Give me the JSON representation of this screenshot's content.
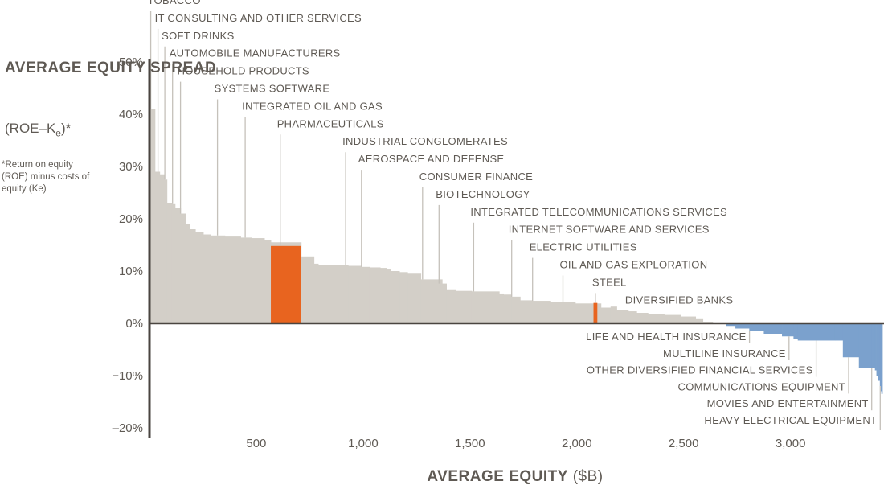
{
  "chart_data": {
    "type": "area",
    "title": "",
    "ylabel": {
      "title": "AVERAGE EQUITY SPREAD",
      "formula": "(ROE–K",
      "formula_sub": "e",
      "formula_end": ")*",
      "footnote": "*Return on equity (ROE) minus costs of equity (Ke)"
    },
    "xlabel": {
      "bold": "AVERAGE EQUITY",
      "unit": "($B)"
    },
    "xlim": [
      0,
      3430
    ],
    "ylim": [
      -20,
      50
    ],
    "x_ticks": [
      {
        "value": 500,
        "label": "500"
      },
      {
        "value": 1000,
        "label": "1,000"
      },
      {
        "value": 1500,
        "label": "1,500"
      },
      {
        "value": 2000,
        "label": "2,000"
      },
      {
        "value": 2500,
        "label": "2,500"
      },
      {
        "value": 3000,
        "label": "3,000"
      }
    ],
    "y_ticks": [
      {
        "value": 50,
        "label": "50%"
      },
      {
        "value": 40,
        "label": "40%"
      },
      {
        "value": 30,
        "label": "30%"
      },
      {
        "value": 20,
        "label": "20%"
      },
      {
        "value": 10,
        "label": "10%"
      },
      {
        "value": 0,
        "label": "0%"
      },
      {
        "value": -10,
        "label": "−10%"
      },
      {
        "value": -20,
        "label": "–20%"
      }
    ],
    "colors": {
      "positive": "#d3cfc8",
      "negative": "#7ba1cd",
      "highlight": "#e8641f",
      "axis": "#4a4540",
      "text": "#5f5a54",
      "leader": "#c5c1ba"
    },
    "steps": [
      [
        0,
        50
      ],
      [
        6,
        41
      ],
      [
        26,
        29
      ],
      [
        48,
        28.5
      ],
      [
        70,
        27.5
      ],
      [
        82,
        23
      ],
      [
        105,
        22.8
      ],
      [
        120,
        22
      ],
      [
        146,
        21
      ],
      [
        168,
        19
      ],
      [
        190,
        18
      ],
      [
        215,
        17.5
      ],
      [
        252,
        17
      ],
      [
        287,
        16.8
      ],
      [
        353,
        16.6
      ],
      [
        427,
        16.4
      ],
      [
        478,
        16.3
      ],
      [
        538,
        16
      ],
      [
        568,
        15.5
      ],
      [
        710,
        12.8
      ],
      [
        770,
        11.4
      ],
      [
        790,
        11.2
      ],
      [
        850,
        11.1
      ],
      [
        930,
        11
      ],
      [
        990,
        10.8
      ],
      [
        1030,
        10.7
      ],
      [
        1080,
        10.6
      ],
      [
        1110,
        10.3
      ],
      [
        1130,
        10
      ],
      [
        1170,
        9.8
      ],
      [
        1208,
        9.5
      ],
      [
        1270,
        8.4
      ],
      [
        1370,
        7.6
      ],
      [
        1390,
        6.5
      ],
      [
        1435,
        6.2
      ],
      [
        1508,
        6.1
      ],
      [
        1637,
        5.7
      ],
      [
        1657,
        5.5
      ],
      [
        1695,
        5.1
      ],
      [
        1735,
        4.4
      ],
      [
        1793,
        4.3
      ],
      [
        1878,
        4.1
      ],
      [
        1993,
        3.8
      ],
      [
        2113,
        3
      ],
      [
        2158,
        3.2
      ],
      [
        2187,
        2.6
      ],
      [
        2241,
        2.3
      ],
      [
        2280,
        2
      ],
      [
        2333,
        1.8
      ],
      [
        2409,
        1.6
      ],
      [
        2485,
        1.3
      ],
      [
        2556,
        0.8
      ],
      [
        2590,
        0.3
      ],
      [
        2636,
        0.1
      ],
      [
        2700,
        -0.5
      ],
      [
        2742,
        -1
      ],
      [
        2807,
        -1.5
      ],
      [
        2875,
        -2
      ],
      [
        2960,
        -2.5
      ],
      [
        3014,
        -3
      ],
      [
        3034,
        -3.3
      ],
      [
        3208,
        -3.3
      ],
      [
        3245,
        -6.5
      ],
      [
        3320,
        -8.5
      ],
      [
        3380,
        -8.5
      ],
      [
        3395,
        -9
      ],
      [
        3402,
        -10
      ],
      [
        3411,
        -11
      ],
      [
        3418,
        -12
      ],
      [
        3422,
        -13
      ],
      [
        3425,
        -13.5
      ],
      [
        3430,
        -13.5
      ]
    ],
    "highlights": [
      {
        "x0": 568,
        "x1": 710,
        "value": 14.8
      },
      {
        "x0": 2078,
        "x1": 2096,
        "value": 3.9
      }
    ],
    "series": [
      {
        "name": "TOBACCO",
        "x": 6,
        "value": 41
      },
      {
        "name": "IT CONSULTING AND OTHER SERVICES",
        "x": 40,
        "value": 29
      },
      {
        "name": "SOFT DRINKS",
        "x": 72,
        "value": 27.5
      },
      {
        "name": "AUTOMOBILE MANUFACTURERS",
        "x": 108,
        "value": 22.8
      },
      {
        "name": "HOUSEHOLD PRODUCTS",
        "x": 145,
        "value": 21
      },
      {
        "name": "SYSTEMS SOFTWARE",
        "x": 318,
        "value": 16.8
      },
      {
        "name": "INTEGRATED OIL AND GAS",
        "x": 448,
        "value": 16.4
      },
      {
        "name": "PHARMACEUTICALS",
        "x": 612,
        "value": 14.8
      },
      {
        "name": "INDUSTRIAL CONGLOMERATES",
        "x": 918,
        "value": 11.1
      },
      {
        "name": "AEROSPACE AND DEFENSE",
        "x": 992,
        "value": 10.8
      },
      {
        "name": "CONSUMER FINANCE",
        "x": 1278,
        "value": 8.4
      },
      {
        "name": "BIOTECHNOLOGY",
        "x": 1355,
        "value": 7.6
      },
      {
        "name": "INTEGRATED TELECOMMUNICATIONS SERVICES",
        "x": 1517,
        "value": 6.1
      },
      {
        "name": "INTERNET SOFTWARE AND SERVICES",
        "x": 1695,
        "value": 5.1
      },
      {
        "name": "ELECTRIC UTILITIES",
        "x": 1793,
        "value": 4.3
      },
      {
        "name": "OIL AND GAS EXPLORATION",
        "x": 1935,
        "value": 4.1
      },
      {
        "name": "STEEL",
        "x": 2087,
        "value": 3.9
      },
      {
        "name": "DIVERSIFIED BANKS",
        "x": 2241,
        "value": 2.3
      },
      {
        "name": "LIFE AND HEALTH INSURANCE",
        "x": 2808,
        "value": -1.5
      },
      {
        "name": "MULTILINE INSURANCE",
        "x": 2993,
        "value": -2.5
      },
      {
        "name": "OTHER DIVERSIFIED FINANCIAL SERVICES",
        "x": 3120,
        "value": -3.3
      },
      {
        "name": "COMMUNICATIONS EQUIPMENT",
        "x": 3272,
        "value": -6.5
      },
      {
        "name": "MOVIES AND ENTERTAINMENT",
        "x": 3380,
        "value": -8.5
      },
      {
        "name": "HEAVY ELECTRICAL EQUIPMENT",
        "x": 3420,
        "value": -12
      }
    ]
  }
}
